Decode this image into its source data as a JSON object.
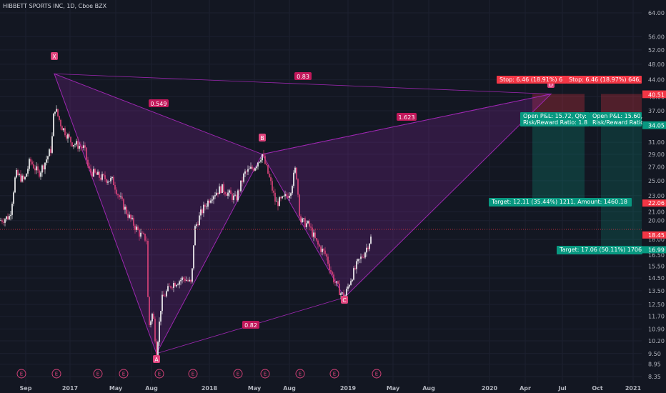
{
  "title": "HIBBETT SPORTS INC, 1D, Cboe BZX",
  "chart_data": {
    "type": "candlestick",
    "price_axis": [
      "64.00",
      "56.00",
      "52.00",
      "48.00",
      "44.00",
      "40.00",
      "37.00",
      "34.00",
      "31.00",
      "29.00",
      "27.00",
      "25.00",
      "23.00",
      "21.00",
      "20.00",
      "18.00",
      "16.50",
      "15.50",
      "14.50",
      "13.50",
      "12.50",
      "11.70",
      "10.90",
      "10.20",
      "9.50",
      "8.95",
      "8.35"
    ],
    "time_axis": [
      "Sep",
      "2017",
      "May",
      "Aug",
      "2018",
      "May",
      "Aug",
      "2019",
      "May",
      "Aug",
      "2020",
      "Apr",
      "Jul",
      "Oct",
      "2021"
    ],
    "scale": "log",
    "pattern": {
      "points": [
        {
          "label": "X",
          "price": 45.5
        },
        {
          "label": "A",
          "price": 9.5
        },
        {
          "label": "B",
          "price": 29.0
        },
        {
          "label": "C",
          "price": 13.0
        },
        {
          "label": "D",
          "price": 40.63
        }
      ],
      "ratios": [
        "0.549",
        "0.83",
        "1.623",
        "0.82"
      ]
    },
    "price_badges": [
      {
        "value": "40.63",
        "color": "#f23645"
      },
      {
        "value": "40.51",
        "color": "#f23645"
      },
      {
        "value": "34.17",
        "color": "#089981"
      },
      {
        "value": "34.05",
        "color": "#089981"
      },
      {
        "value": "22.06",
        "color": "#f23645"
      },
      {
        "value": "18.45",
        "color": "#f23645"
      },
      {
        "value": "16.99",
        "color": "#089981"
      }
    ],
    "positions": [
      {
        "stop": "Stop: 6.46 (18.91%) 6",
        "pnl": "Open P&L: 15.72, Qty:",
        "rr": "Risk/Reward Ratio: 1.8",
        "target": "Target: 12.11 (35.44%) 1211, Amount: 1460.18"
      },
      {
        "stop": "Stop: 6.46 (18.97%) 646,",
        "pnl": "Open P&L: 15.60,",
        "rr": "Risk/Reward Ratio",
        "target": "Target: 17.06 (50.11%) 1706,"
      }
    ],
    "events_label": "E",
    "colors": {
      "up": "#ffffff",
      "down": "#e0447d",
      "pattern": "#9c27b0",
      "profit": "#089981",
      "loss": "#f23645"
    }
  }
}
